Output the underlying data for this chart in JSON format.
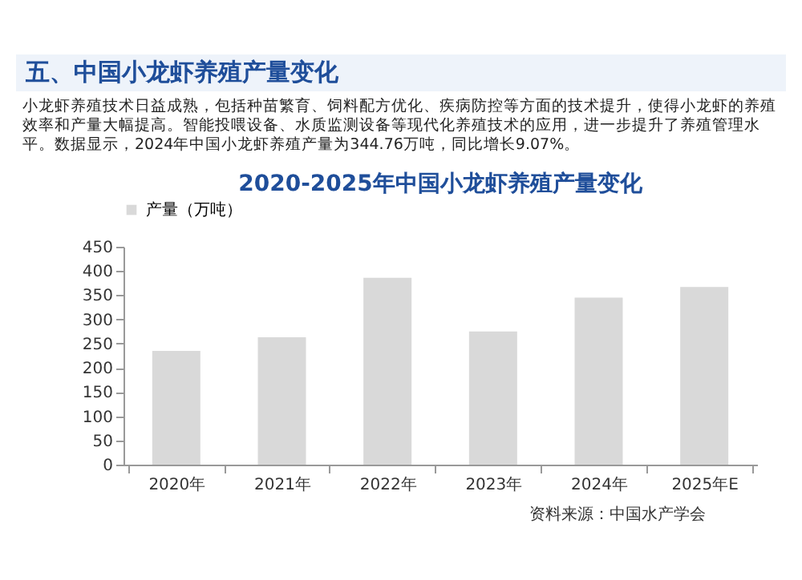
{
  "chart_data": {
    "type": "bar",
    "title": "五、中国小龙虾养殖产量变化",
    "subtitle": "2020-2025年中国小龙虾养殖产量变化",
    "annotations": [
      "小龙虾养殖技术日益成熟，包括种苗繁育、饲料配方优化、疾病防控等方面的技术提升，使得小龙虾的养殖效率和产量大幅提高。智能投喂设备、水质监测设备等现代化养殖技术的应用，进一步提升了养殖管理水平。数据显示，2024年中国小龙虾养殖产量为344.76万吨，同比增长9.07%。",
      "资料来源：中国水产学会"
    ],
    "categories": [
      "2020年",
      "2021年",
      "2022年",
      "2023年",
      "2024年",
      "2025年E"
    ],
    "series": [
      {
        "name": "产量（万吨）",
        "color": "#d9d9d9",
        "values": [
          235,
          263,
          386,
          275,
          345,
          367
        ]
      }
    ],
    "ylim": [
      0,
      450
    ],
    "yticks": [
      0,
      50,
      100,
      150,
      200,
      250,
      300,
      350,
      400,
      450
    ],
    "legend": "top",
    "grid": false
  }
}
